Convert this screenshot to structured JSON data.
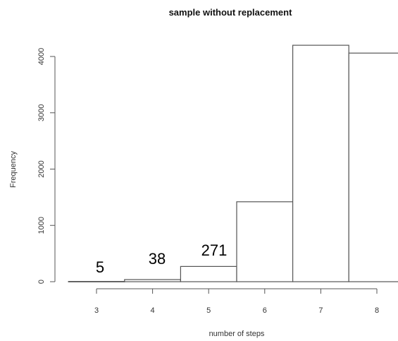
{
  "chart_data": {
    "type": "bar",
    "title": "sample without replacement",
    "xlabel": "number of steps",
    "ylabel": "Frequency",
    "categories": [
      "3",
      "4",
      "5",
      "6",
      "7",
      "8"
    ],
    "values": [
      5,
      38,
      271,
      1420,
      4200,
      4060
    ],
    "x_ticks": [
      "3",
      "4",
      "5",
      "6",
      "7",
      "8"
    ],
    "y_ticks": [
      "0",
      "1000",
      "2000",
      "3000",
      "4000"
    ],
    "annotations": [
      "5",
      "38",
      "271"
    ],
    "ylim": [
      0,
      4200
    ],
    "grid": false,
    "legend": "none"
  }
}
